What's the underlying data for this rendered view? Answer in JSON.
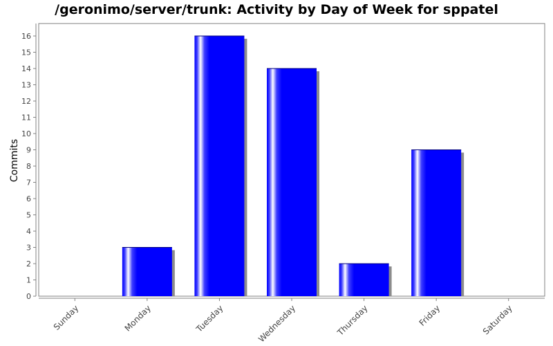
{
  "chart_data": {
    "type": "bar",
    "title": "/geronimo/server/trunk: Activity by Day of Week for sppatel",
    "xlabel": "",
    "ylabel": "Commits",
    "categories": [
      "Sunday",
      "Monday",
      "Tuesday",
      "Wednesday",
      "Thursday",
      "Friday",
      "Saturday"
    ],
    "values": [
      0,
      3,
      16,
      14,
      2,
      9,
      0
    ],
    "ylim": [
      0,
      17
    ],
    "yticks": [
      0,
      1,
      2,
      3,
      4,
      5,
      6,
      7,
      8,
      9,
      10,
      11,
      12,
      13,
      14,
      15,
      16
    ],
    "grid": false,
    "legend": "none",
    "colors": {
      "bar": "#0000ff",
      "bar_highlight": "#ffffff",
      "shadow": "#8c8c8c",
      "axis": "#808080",
      "tick_label": "#444444"
    }
  }
}
